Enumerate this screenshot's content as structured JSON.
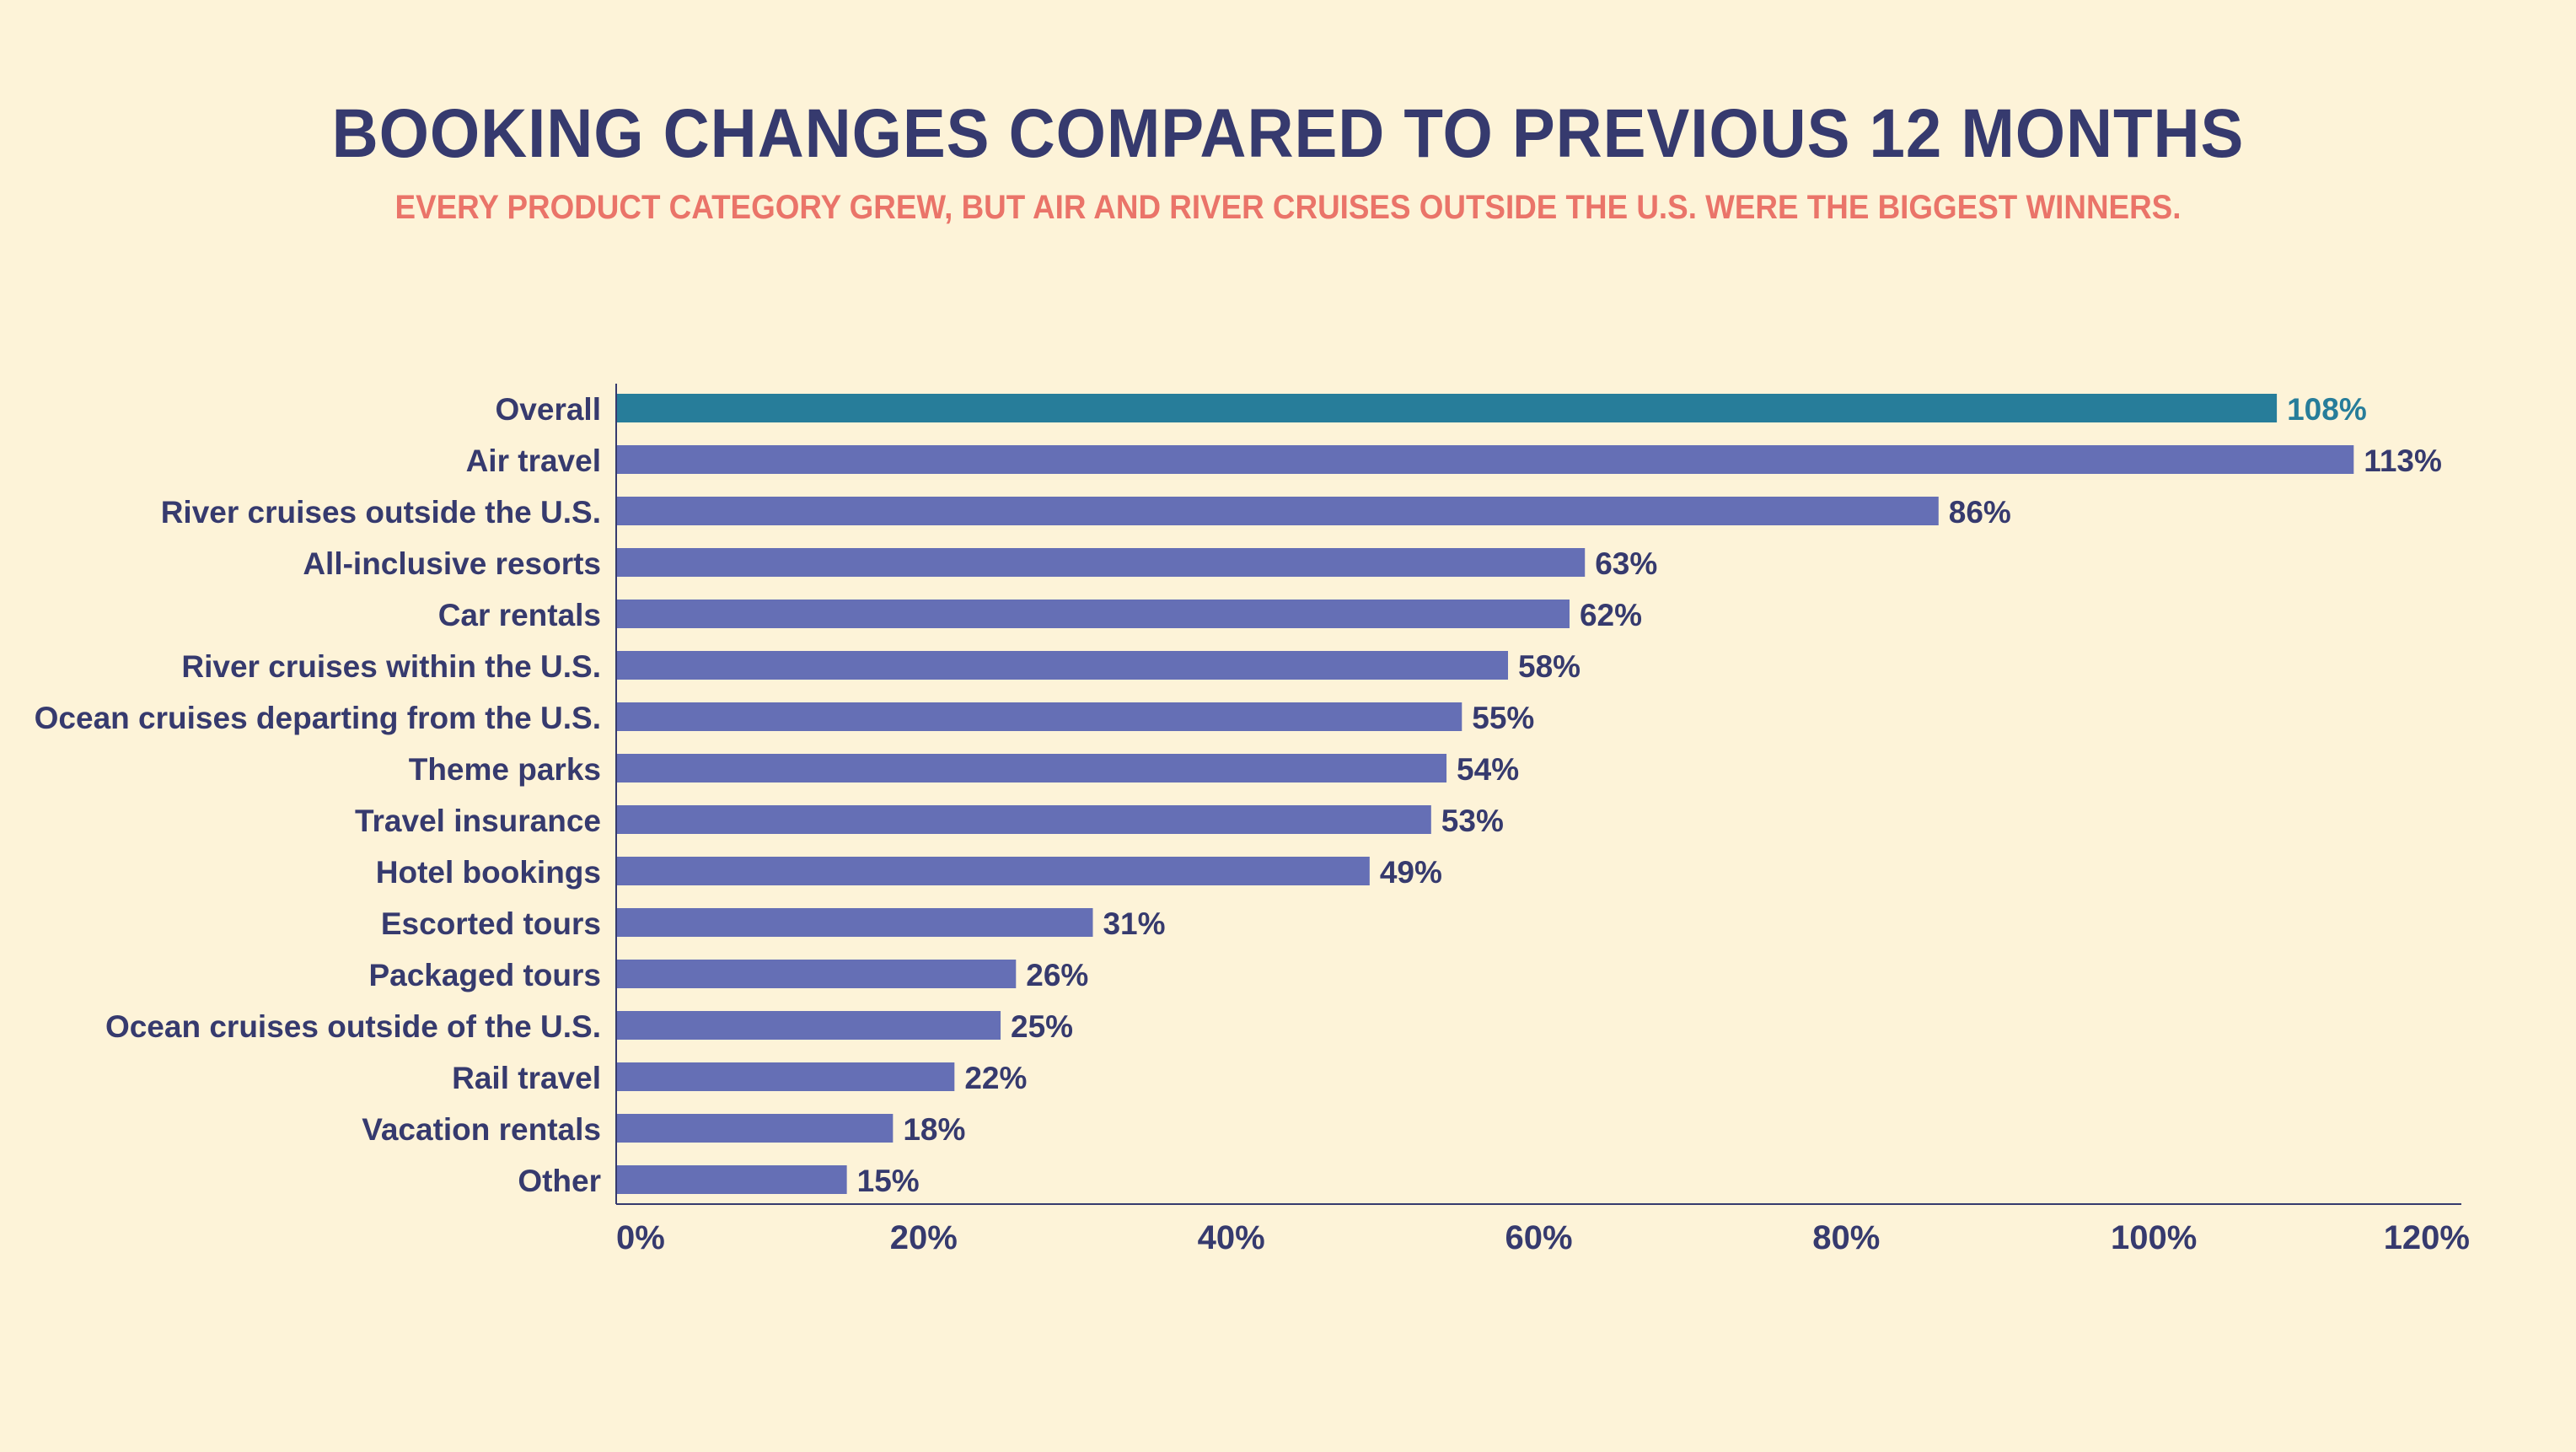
{
  "header": {
    "title": "BOOKING CHANGES COMPARED TO PREVIOUS 12 MONTHS",
    "subtitle": "EVERY PRODUCT CATEGORY GREW, BUT AIR AND RIVER CRUISES OUTSIDE THE U.S. WERE THE BIGGEST WINNERS."
  },
  "colors": {
    "background": "#fdf3d8",
    "title": "#363a6e",
    "subtitle": "#ea7469",
    "bar": "#656fb5",
    "highlight_bar": "#277d9a",
    "axis": "#363a6e"
  },
  "chart_data": {
    "type": "bar",
    "orientation": "horizontal",
    "title": "BOOKING CHANGES COMPARED TO PREVIOUS 12 MONTHS",
    "subtitle": "EVERY PRODUCT CATEGORY GREW, BUT AIR AND RIVER CRUISES OUTSIDE THE U.S. WERE THE BIGGEST WINNERS.",
    "categories": [
      "Overall",
      "Air travel",
      "River cruises outside the U.S.",
      "All-inclusive resorts",
      "Car rentals",
      "River cruises within the U.S.",
      "Ocean cruises departing from the U.S.",
      "Theme parks",
      "Travel insurance",
      "Hotel bookings",
      "Escorted tours",
      "Packaged tours",
      "Ocean cruises outside of the U.S.",
      "Rail travel",
      "Vacation rentals",
      "Other"
    ],
    "values": [
      108,
      113,
      86,
      63,
      62,
      58,
      55,
      54,
      53,
      49,
      31,
      26,
      25,
      22,
      18,
      15
    ],
    "value_labels": [
      "108%",
      "113%",
      "86%",
      "63%",
      "62%",
      "58%",
      "55%",
      "54%",
      "53%",
      "49%",
      "31%",
      "26%",
      "25%",
      "22%",
      "18%",
      "15%"
    ],
    "highlighted_category": "Overall",
    "xlim": [
      0,
      120
    ],
    "xticks": [
      0,
      20,
      40,
      60,
      80,
      100,
      120
    ],
    "xtick_labels": [
      "0%",
      "20%",
      "40%",
      "60%",
      "80%",
      "100%",
      "120%"
    ],
    "xlabel": "",
    "ylabel": "",
    "grid": false,
    "legend": "none"
  }
}
